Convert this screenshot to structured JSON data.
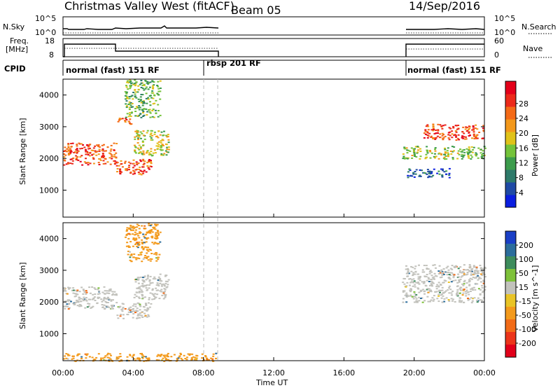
{
  "header": {
    "radar_name": "Christmas Valley West (fitACF)",
    "beam": "Beam 05",
    "date": "14/Sep/2016"
  },
  "side_labels": {
    "nsky": "N.Sky",
    "freq_line1": "Freq.",
    "freq_line2": "[MHz]",
    "cpid": "CPID",
    "nsearch": "N.Search",
    "nave": "Nave"
  },
  "top_panels": {
    "noise_ticks": [
      "10^5",
      "10^0"
    ],
    "noise_ticks_right": [
      "10^5",
      "10^0"
    ],
    "freq_ticks": [
      "18",
      "8"
    ],
    "nave_ticks": [
      "60",
      "0"
    ]
  },
  "cpid_segments": [
    {
      "label": "normal (fast)  151 RF",
      "start_h": 0,
      "end_h": 8.75
    },
    {
      "label": "rbsp  201 RF",
      "start_h": 8.75,
      "end_h": 19.3
    },
    {
      "label": "normal (fast)  151 RF",
      "start_h": 19.3,
      "end_h": 24
    }
  ],
  "x_axis": {
    "label": "Time UT",
    "ticks": [
      "00:00",
      "04:00",
      "08:00",
      "12:00",
      "16:00",
      "20:00",
      "00:00"
    ],
    "tick_hours": [
      0,
      4,
      8,
      12,
      16,
      20,
      24
    ]
  },
  "y_axis": {
    "label": "Slant Range [km]",
    "ticks": [
      "1000",
      "2000",
      "3000",
      "4000"
    ],
    "tick_values": [
      1000,
      2000,
      3000,
      4000
    ],
    "range": [
      150,
      4500
    ]
  },
  "power_colorbar": {
    "label": "Power [dB]",
    "ticks": [
      "4",
      "8",
      "12",
      "16",
      "20",
      "24",
      "28"
    ],
    "colors": [
      "#0a1ee0",
      "#1f4aa5",
      "#2e7a6a",
      "#3c9c4c",
      "#74c33a",
      "#e0c219",
      "#f3981b",
      "#f46a17",
      "#ec2a1a",
      "#e4001a"
    ]
  },
  "velocity_colorbar": {
    "label": "Velocity [m s^-1]",
    "ticks": [
      "200",
      "100",
      "50",
      "15",
      "-15",
      "-50",
      "-100",
      "-200"
    ],
    "colors": [
      "#1a3fc6",
      "#2c6d9c",
      "#3d8c5c",
      "#7ec13a",
      "#c2c2bc",
      "#e9c426",
      "#f39a1c",
      "#f26b17",
      "#ec351a",
      "#e2001a"
    ]
  },
  "chart_data": {
    "type": "heatmap",
    "title": "Christmas Valley West (fitACF)",
    "xlabel": "Time UT",
    "ylabel": "Slant Range [km]",
    "xlim": [
      0,
      24
    ],
    "ylim": [
      150,
      4500
    ],
    "data_gap_hours": [
      8.75,
      19.3
    ],
    "panels": [
      {
        "name": "Power",
        "unit": "dB",
        "scatter_regions": [
          {
            "t_start": 0.0,
            "t_end": 3.0,
            "range_low": 1800,
            "range_high": 2500,
            "value": 26
          },
          {
            "t_start": 3.0,
            "t_end": 4.0,
            "range_low": 3100,
            "range_high": 3300,
            "value": 26
          },
          {
            "t_start": 3.0,
            "t_end": 5.0,
            "range_low": 1500,
            "range_high": 2000,
            "value": 26
          },
          {
            "t_start": 4.0,
            "t_end": 6.0,
            "range_low": 2100,
            "range_high": 2900,
            "value": 18
          },
          {
            "t_start": 3.5,
            "t_end": 5.5,
            "range_low": 3300,
            "range_high": 4500,
            "value": 14
          },
          {
            "t_start": 19.3,
            "t_end": 24.0,
            "range_low": 2000,
            "range_high": 2400,
            "value": 16
          },
          {
            "t_start": 20.5,
            "t_end": 24.0,
            "range_low": 2600,
            "range_high": 3100,
            "value": 26
          },
          {
            "t_start": 19.5,
            "t_end": 22.0,
            "range_low": 1400,
            "range_high": 1700,
            "value": 8
          }
        ]
      },
      {
        "name": "Velocity",
        "unit": "m s^-1",
        "scatter_regions": [
          {
            "t_start": 0.0,
            "t_end": 3.0,
            "range_low": 1800,
            "range_high": 2500,
            "value": 0
          },
          {
            "t_start": 3.0,
            "t_end": 5.0,
            "range_low": 1500,
            "range_high": 2000,
            "value": 0
          },
          {
            "t_start": 4.0,
            "t_end": 6.0,
            "range_low": 2100,
            "range_high": 2900,
            "value": 0
          },
          {
            "t_start": 3.5,
            "t_end": 5.5,
            "range_low": 3300,
            "range_high": 4500,
            "value": -40
          },
          {
            "t_start": 0.0,
            "t_end": 8.75,
            "range_low": 150,
            "range_high": 400,
            "value": -40
          },
          {
            "t_start": 19.3,
            "t_end": 24.0,
            "range_low": 2000,
            "range_high": 3200,
            "value": 0
          }
        ]
      }
    ]
  }
}
